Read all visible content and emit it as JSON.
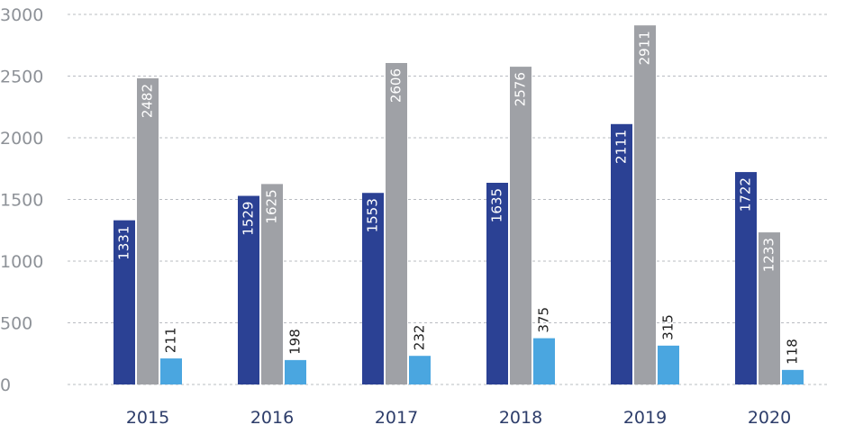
{
  "chart_data": {
    "type": "bar",
    "categories": [
      "2015",
      "2016",
      "2017",
      "2018",
      "2019",
      "2020"
    ],
    "series": [
      {
        "values": [
          1331,
          1529,
          1553,
          1635,
          2111,
          1722
        ],
        "color": "#2b4194",
        "label_position": "inside"
      },
      {
        "values": [
          2482,
          1625,
          2606,
          2576,
          2911,
          1233
        ],
        "color": "#9fa1a6",
        "label_position": "inside"
      },
      {
        "values": [
          211,
          198,
          232,
          375,
          315,
          118
        ],
        "color": "#4aa6e0",
        "label_position": "above"
      }
    ],
    "y_ticks": [
      "0",
      "500",
      "1000",
      "1500",
      "2000",
      "2500",
      "3000"
    ],
    "ylim": [
      0,
      3000
    ],
    "grid": true,
    "legend": "none",
    "title": "",
    "xlabel": "",
    "ylabel": ""
  }
}
